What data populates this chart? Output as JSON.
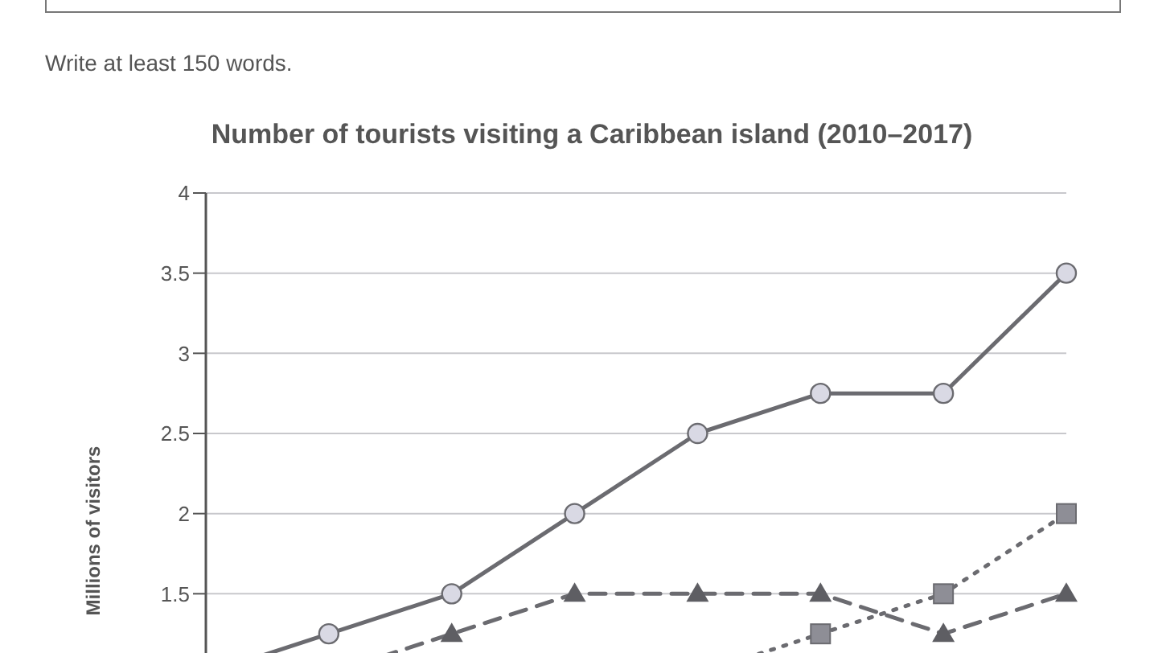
{
  "chart_data": {
    "type": "line",
    "title": "Number of tourists visiting a Caribbean island (2010–2017)",
    "ylabel": "Millions of visitors",
    "annotations": [
      "Write at least 150 words."
    ],
    "categories": [
      null,
      null,
      null,
      null,
      null,
      null,
      null,
      null
    ],
    "series": [
      {
        "color": "#6b6b70",
        "marker": "circle",
        "line_style": "solid",
        "values": [
          1,
          1.25,
          1.5,
          2,
          2.5,
          2.75,
          2.75,
          3.5
        ]
      },
      {
        "color": "#6b6b70",
        "marker": "triangle",
        "line_style": "dashed",
        "values": [
          null,
          1,
          1.25,
          1.5,
          1.5,
          1.5,
          1.25,
          1.5
        ]
      },
      {
        "color": "#6b6b70",
        "marker": "square",
        "line_style": "dotted",
        "values": [
          null,
          null,
          null,
          null,
          1,
          1.25,
          1.5,
          2
        ]
      }
    ],
    "ylim": [
      1,
      4
    ],
    "yticks": [
      1.5,
      2,
      2.5,
      3,
      3.5,
      4
    ],
    "grid": "y",
    "legend": false
  }
}
